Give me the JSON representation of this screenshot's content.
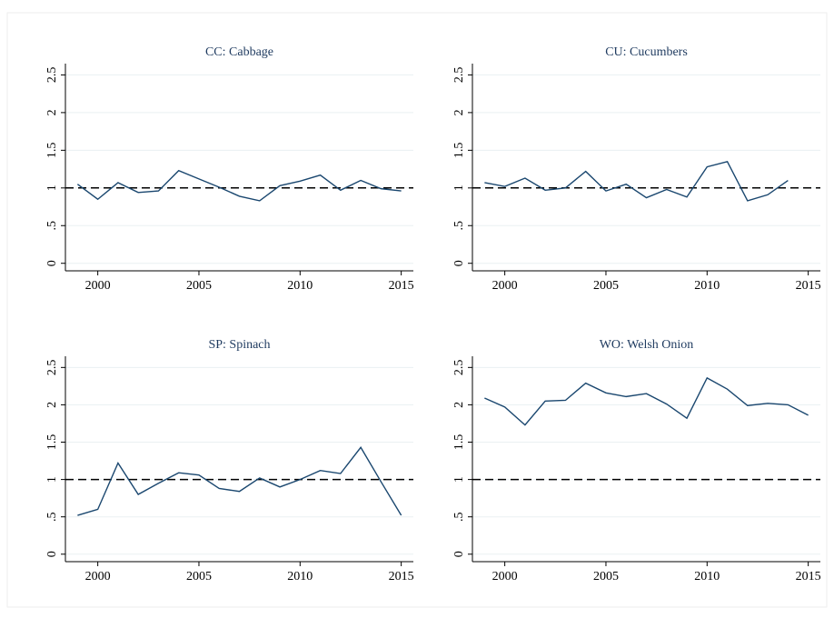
{
  "chart_data": [
    {
      "type": "line",
      "title": "CC: Cabbage",
      "color": "#1a476f",
      "x": [
        1999,
        2000,
        2001,
        2002,
        2003,
        2004,
        2005,
        2006,
        2007,
        2008,
        2009,
        2010,
        2011,
        2012,
        2013,
        2014,
        2015
      ],
      "values": [
        1.05,
        0.85,
        1.07,
        0.94,
        0.96,
        1.23,
        1.12,
        1.01,
        0.89,
        0.83,
        1.03,
        1.09,
        1.17,
        0.97,
        1.1,
        0.99,
        0.96
      ],
      "xlim": [
        1998.4,
        2015.6
      ],
      "xticks": [
        2000,
        2005,
        2010,
        2015
      ],
      "ylim": [
        -0.1,
        2.65
      ],
      "yticks": [
        0,
        {
          "value": 0.5,
          "label": ".5"
        },
        1,
        1.5,
        2,
        2.5
      ],
      "hline": 1,
      "grid": true
    },
    {
      "type": "line",
      "title": "CU: Cucumbers",
      "color": "#1a476f",
      "x": [
        1999,
        2000,
        2001,
        2002,
        2003,
        2004,
        2005,
        2006,
        2007,
        2008,
        2009,
        2010,
        2011,
        2012,
        2013,
        2014,
        2015
      ],
      "values": [
        1.07,
        1.02,
        1.13,
        0.97,
        1.0,
        1.22,
        0.96,
        1.05,
        0.87,
        0.98,
        0.88,
        1.28,
        1.35,
        0.83,
        0.91,
        1.1,
        null
      ],
      "xlim": [
        1998.4,
        2015.6
      ],
      "xticks": [
        2000,
        2005,
        2010,
        2015
      ],
      "ylim": [
        -0.1,
        2.65
      ],
      "yticks": [
        0,
        {
          "value": 0.5,
          "label": ".5"
        },
        1,
        1.5,
        2,
        2.5
      ],
      "hline": 1,
      "grid": true
    },
    {
      "type": "line",
      "title": "SP: Spinach",
      "color": "#1a476f",
      "x": [
        1999,
        2000,
        2001,
        2002,
        2003,
        2004,
        2005,
        2006,
        2007,
        2008,
        2009,
        2010,
        2011,
        2012,
        2013,
        2014,
        2015
      ],
      "values": [
        0.52,
        0.6,
        1.22,
        0.8,
        0.95,
        1.09,
        1.06,
        0.88,
        0.84,
        1.02,
        0.9,
        1.0,
        1.12,
        1.08,
        1.43,
        0.97,
        0.52
      ],
      "xlim": [
        1998.4,
        2015.6
      ],
      "xticks": [
        2000,
        2005,
        2010,
        2015
      ],
      "ylim": [
        -0.1,
        2.65
      ],
      "yticks": [
        0,
        {
          "value": 0.5,
          "label": ".5"
        },
        1,
        1.5,
        2,
        2.5
      ],
      "hline": 1,
      "grid": true
    },
    {
      "type": "line",
      "title": "WO: Welsh Onion",
      "color": "#1a476f",
      "x": [
        1999,
        2000,
        2001,
        2002,
        2003,
        2004,
        2005,
        2006,
        2007,
        2008,
        2009,
        2010,
        2011,
        2012,
        2013,
        2014,
        2015
      ],
      "values": [
        2.09,
        1.97,
        1.73,
        2.05,
        2.06,
        2.29,
        2.16,
        2.11,
        2.15,
        2.01,
        1.82,
        2.36,
        2.21,
        1.99,
        2.02,
        2.0,
        1.86
      ],
      "xlim": [
        1998.4,
        2015.6
      ],
      "xticks": [
        2000,
        2005,
        2010,
        2015
      ],
      "ylim": [
        -0.1,
        2.65
      ],
      "yticks": [
        0,
        {
          "value": 0.5,
          "label": ".5"
        },
        1,
        1.5,
        2,
        2.5
      ],
      "hline": 1,
      "grid": true
    }
  ]
}
